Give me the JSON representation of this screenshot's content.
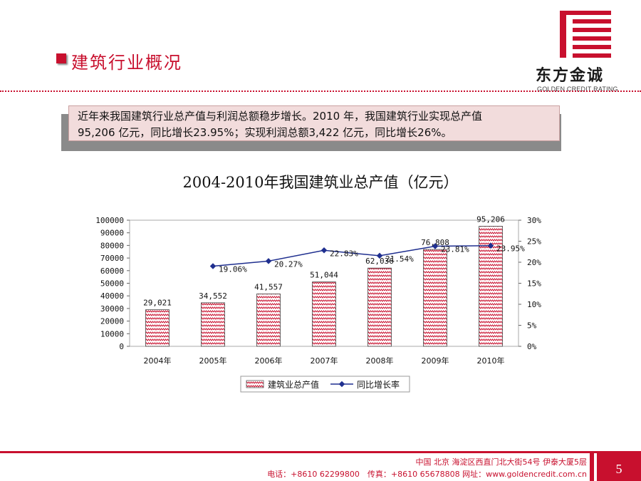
{
  "header": {
    "title": "建筑行业概况",
    "logo_name": "东方金诚",
    "logo_subtitle": "GOLDEN CREDIT RATING"
  },
  "summary": {
    "line1": "近年来我国建筑行业总产值与利润总额稳步增长。2010 年，我国建筑行业实现总产值",
    "line2": "95,206 亿元，同比增长23.95%；实现利润总额3,422 亿元，同比增长26%。"
  },
  "chart_data": {
    "type": "bar",
    "title": "2004-2010年我国建筑业总产值（亿元）",
    "categories": [
      "2004年",
      "2005年",
      "2006年",
      "2007年",
      "2008年",
      "2009年",
      "2010年"
    ],
    "series": [
      {
        "name": "建筑业总产值",
        "type": "bar",
        "axis": "left",
        "values": [
          29021,
          34552,
          41557,
          51044,
          62036,
          76808,
          95206
        ],
        "labels": [
          "29,021",
          "34,552",
          "41,557",
          "51,044",
          "62,036",
          "76,808",
          "95,206"
        ],
        "color": "#c8102e"
      },
      {
        "name": "同比增长率",
        "type": "line",
        "axis": "right",
        "values": [
          null,
          19.06,
          20.27,
          22.83,
          21.54,
          23.81,
          23.95
        ],
        "labels": [
          "",
          "19.06%",
          "20.27%",
          "22.83%",
          "21.54%",
          "23.81%",
          "23.95%"
        ],
        "color": "#1f2f8f"
      }
    ],
    "ylim": [
      0,
      100000
    ],
    "yticks": [
      "100000",
      "90000",
      "80000",
      "70000",
      "60000",
      "50000",
      "40000",
      "30000",
      "20000",
      "10000",
      "0"
    ],
    "y2lim": [
      0,
      30
    ],
    "y2ticks": [
      "30%",
      "25%",
      "20%",
      "15%",
      "10%",
      "5%",
      "0%"
    ],
    "legend_position": "bottom",
    "grid": false
  },
  "footer": {
    "address": "中国 北京 海淀区西直门北大街54号 伊泰大厦5层",
    "contact": "电话：+8610 62299800　传真：+8610 65678808 网址：www.goldencredit.com.cn",
    "page_number": "5"
  }
}
